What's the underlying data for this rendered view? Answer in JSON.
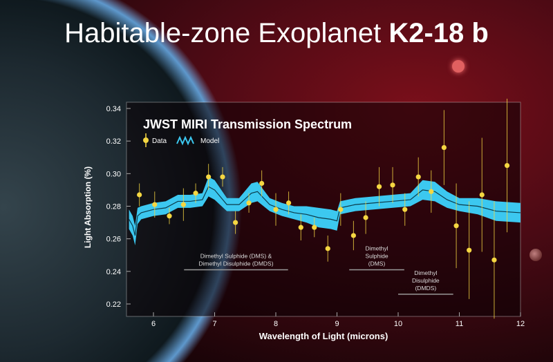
{
  "title": {
    "light": "Habitable-zone Exoplanet ",
    "bold": "K2-18 b"
  },
  "chart_data": {
    "type": "scatter",
    "title": "JWST MIRI Transmission Spectrum",
    "xlabel": "Wavelength of Light (microns)",
    "ylabel": "Light Absorption (%)",
    "xlim": [
      5.56,
      12
    ],
    "ylim": [
      0.215,
      0.342
    ],
    "xticks": [
      "6",
      "7",
      "8",
      "9",
      "10",
      "11",
      "12"
    ],
    "yticks": [
      "0.22",
      "0.24",
      "0.26",
      "0.28",
      "0.30",
      "0.32",
      "0.34"
    ],
    "grid": false,
    "legend": {
      "placement": "top-left",
      "entries": [
        "Data",
        "Model"
      ]
    },
    "colors": {
      "data": "#f5d742",
      "model": "#3cc8f0",
      "model_line": "#0b3a4a"
    },
    "data": {
      "name": "Data",
      "x": [
        5.77,
        6.02,
        6.26,
        6.49,
        6.69,
        6.9,
        7.13,
        7.34,
        7.56,
        7.77,
        8.0,
        8.21,
        8.41,
        8.63,
        8.85,
        9.06,
        9.27,
        9.47,
        9.69,
        9.91,
        10.11,
        10.33,
        10.54,
        10.75,
        10.95,
        11.16,
        11.37,
        11.57,
        11.78
      ],
      "y": [
        0.287,
        0.281,
        0.274,
        0.281,
        0.288,
        0.298,
        0.298,
        0.27,
        0.282,
        0.294,
        0.278,
        0.282,
        0.267,
        0.267,
        0.254,
        0.278,
        0.262,
        0.273,
        0.292,
        0.293,
        0.278,
        0.298,
        0.289,
        0.316,
        0.268,
        0.253,
        0.287,
        0.247,
        0.305
      ],
      "err": [
        0.007,
        0.008,
        0.005,
        0.01,
        0.006,
        0.008,
        0.006,
        0.007,
        0.006,
        0.008,
        0.01,
        0.007,
        0.008,
        0.006,
        0.008,
        0.01,
        0.009,
        0.01,
        0.012,
        0.011,
        0.01,
        0.012,
        0.013,
        0.023,
        0.026,
        0.03,
        0.035,
        0.036,
        0.041
      ]
    },
    "model": {
      "name": "Model",
      "x": [
        5.6,
        5.66,
        5.7,
        5.74,
        5.8,
        6.0,
        6.2,
        6.4,
        6.6,
        6.8,
        6.9,
        7.0,
        7.2,
        7.4,
        7.6,
        7.7,
        7.9,
        8.1,
        8.3,
        8.5,
        8.7,
        8.9,
        9.0,
        9.05,
        9.3,
        9.6,
        9.9,
        10.2,
        10.4,
        10.6,
        10.8,
        11.0,
        11.3,
        11.6,
        12.0
      ],
      "y": [
        0.272,
        0.268,
        0.262,
        0.274,
        0.276,
        0.278,
        0.279,
        0.283,
        0.283,
        0.284,
        0.292,
        0.29,
        0.281,
        0.281,
        0.288,
        0.289,
        0.281,
        0.278,
        0.276,
        0.275,
        0.273,
        0.272,
        0.271,
        0.279,
        0.281,
        0.282,
        0.283,
        0.284,
        0.29,
        0.289,
        0.284,
        0.281,
        0.28,
        0.277,
        0.276
      ],
      "halfwidth": [
        0.006,
        0.006,
        0.006,
        0.005,
        0.004,
        0.004,
        0.004,
        0.004,
        0.004,
        0.004,
        0.006,
        0.006,
        0.004,
        0.004,
        0.006,
        0.006,
        0.004,
        0.004,
        0.004,
        0.005,
        0.006,
        0.006,
        0.006,
        0.004,
        0.004,
        0.004,
        0.004,
        0.004,
        0.006,
        0.006,
        0.005,
        0.004,
        0.005,
        0.006,
        0.006
      ]
    },
    "annotations": [
      {
        "lines": [
          "Dimethyl Sulphide (DMS) &",
          "Dimethyl Disulphide (DMDS)"
        ],
        "x_range": [
          6.5,
          8.2
        ],
        "y": 0.241
      },
      {
        "lines": [
          "Dimethyl",
          "Sulphide",
          "(DMS)"
        ],
        "x_range": [
          9.2,
          10.1
        ],
        "y": 0.241
      },
      {
        "lines": [
          "Dimethyl",
          "Disulphide",
          "(DMDS)"
        ],
        "x_range": [
          10.0,
          10.9
        ],
        "y": 0.226
      }
    ]
  }
}
